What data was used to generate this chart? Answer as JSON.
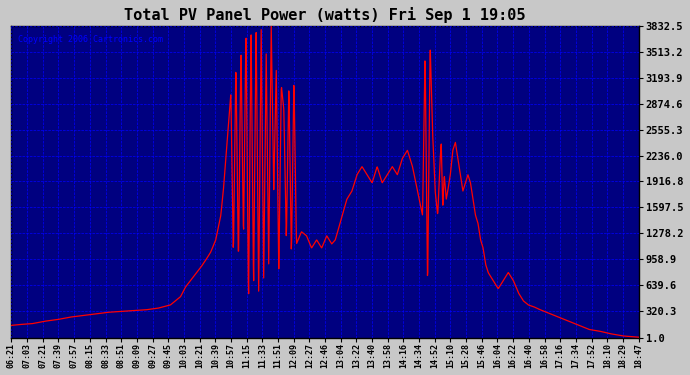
{
  "title": "Total PV Panel Power (watts) Fri Sep 1 19:05",
  "copyright": "Copyright 2006 Cartronics.com",
  "background_color": "#C8C8C8",
  "plot_bg_color": "#000080",
  "line_color": "#FF0000",
  "grid_color": "#0000FF",
  "title_color": "#000000",
  "ylabel_color": "#000000",
  "xlabel_color": "#000000",
  "copyright_color": "#0000FF",
  "ymin": 1.0,
  "ymax": 3832.5,
  "yticks": [
    1.0,
    320.3,
    639.6,
    958.9,
    1278.2,
    1597.5,
    1916.8,
    2236.0,
    2555.3,
    2874.6,
    3193.9,
    3513.2,
    3832.5
  ],
  "x_labels": [
    "06:21",
    "07:03",
    "07:21",
    "07:39",
    "07:57",
    "08:15",
    "08:33",
    "08:51",
    "09:09",
    "09:27",
    "09:45",
    "10:03",
    "10:21",
    "10:39",
    "10:57",
    "11:15",
    "11:33",
    "11:51",
    "12:09",
    "12:27",
    "12:46",
    "13:04",
    "13:22",
    "13:40",
    "13:58",
    "14:16",
    "14:34",
    "14:52",
    "15:10",
    "15:28",
    "15:46",
    "16:04",
    "16:22",
    "16:40",
    "16:58",
    "17:16",
    "17:34",
    "17:52",
    "18:10",
    "18:29",
    "18:47"
  ],
  "waypoints_hours": [
    6.35,
    6.5,
    6.75,
    7.0,
    7.25,
    7.5,
    7.75,
    8.0,
    8.25,
    8.5,
    8.75,
    9.0,
    9.25,
    9.5,
    9.6,
    9.7,
    9.75,
    9.8,
    9.9,
    10.0,
    10.1,
    10.2,
    10.3,
    10.4,
    10.5,
    10.55,
    10.6,
    10.65,
    10.7,
    10.75,
    10.8,
    10.85,
    10.9,
    10.95,
    11.0,
    11.05,
    11.1,
    11.15,
    11.2,
    11.25,
    11.3,
    11.35,
    11.4,
    11.45,
    11.5,
    11.55,
    11.6,
    11.65,
    11.7,
    11.75,
    11.8,
    11.85,
    11.9,
    11.95,
    12.0,
    12.1,
    12.2,
    12.3,
    12.4,
    12.5,
    12.6,
    12.7,
    12.77,
    13.0,
    13.1,
    13.2,
    13.3,
    13.4,
    13.5,
    13.6,
    13.7,
    13.8,
    13.9,
    14.0,
    14.1,
    14.2,
    14.3,
    14.4,
    14.5,
    14.55,
    14.6,
    14.65,
    14.7,
    14.75,
    14.8,
    14.85,
    14.87,
    14.9,
    14.93,
    14.97,
    15.0,
    15.05,
    15.1,
    15.15,
    15.2,
    15.25,
    15.3,
    15.35,
    15.4,
    15.45,
    15.5,
    15.55,
    15.6,
    15.65,
    15.7,
    15.75,
    15.8,
    15.9,
    16.0,
    16.1,
    16.2,
    16.3,
    16.4,
    16.5,
    16.6,
    16.7,
    16.8,
    17.0,
    17.2,
    17.4,
    17.6,
    17.8,
    18.0,
    18.2,
    18.47,
    18.78
  ],
  "waypoints_values": [
    150,
    160,
    170,
    200,
    220,
    250,
    270,
    290,
    310,
    320,
    330,
    340,
    360,
    400,
    450,
    500,
    560,
    620,
    700,
    780,
    860,
    950,
    1050,
    1200,
    1500,
    1800,
    2200,
    2600,
    3000,
    1000,
    3400,
    900,
    3600,
    1200,
    3832,
    400,
    3832,
    600,
    3832,
    500,
    3832,
    700,
    3500,
    900,
    3832,
    1800,
    3300,
    800,
    3100,
    2800,
    1200,
    3100,
    1000,
    3200,
    1150,
    1300,
    1250,
    1100,
    1200,
    1100,
    1250,
    1150,
    1200,
    1700,
    1800,
    2000,
    2100,
    2000,
    1900,
    2100,
    1900,
    2000,
    2100,
    2000,
    2200,
    2300,
    2100,
    1800,
    1500,
    3500,
    600,
    3600,
    2500,
    1800,
    1500,
    2200,
    2400,
    1600,
    2000,
    1700,
    1800,
    2000,
    2300,
    2400,
    2200,
    2000,
    1800,
    1900,
    2000,
    1900,
    1700,
    1500,
    1400,
    1200,
    1100,
    900,
    800,
    700,
    600,
    700,
    800,
    700,
    550,
    450,
    400,
    380,
    350,
    300,
    250,
    200,
    150,
    100,
    80,
    50,
    20,
    5
  ]
}
